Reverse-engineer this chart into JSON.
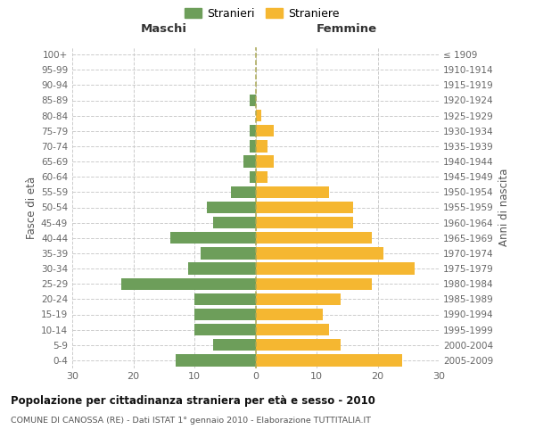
{
  "age_groups": [
    "0-4",
    "5-9",
    "10-14",
    "15-19",
    "20-24",
    "25-29",
    "30-34",
    "35-39",
    "40-44",
    "45-49",
    "50-54",
    "55-59",
    "60-64",
    "65-69",
    "70-74",
    "75-79",
    "80-84",
    "85-89",
    "90-94",
    "95-99",
    "100+"
  ],
  "birth_years": [
    "2005-2009",
    "2000-2004",
    "1995-1999",
    "1990-1994",
    "1985-1989",
    "1980-1984",
    "1975-1979",
    "1970-1974",
    "1965-1969",
    "1960-1964",
    "1955-1959",
    "1950-1954",
    "1945-1949",
    "1940-1944",
    "1935-1939",
    "1930-1934",
    "1925-1929",
    "1920-1924",
    "1915-1919",
    "1910-1914",
    "≤ 1909"
  ],
  "males": [
    13,
    7,
    10,
    10,
    10,
    22,
    11,
    9,
    14,
    7,
    8,
    4,
    1,
    2,
    1,
    1,
    0,
    1,
    0,
    0,
    0
  ],
  "females": [
    24,
    14,
    12,
    11,
    14,
    19,
    26,
    21,
    19,
    16,
    16,
    12,
    2,
    3,
    2,
    3,
    1,
    0,
    0,
    0,
    0
  ],
  "male_color": "#6d9e5a",
  "female_color": "#f5b731",
  "title": "Popolazione per cittadinanza straniera per età e sesso - 2010",
  "subtitle": "COMUNE DI CANOSSA (RE) - Dati ISTAT 1° gennaio 2010 - Elaborazione TUTTITALIA.IT",
  "label_maschi": "Maschi",
  "label_femmine": "Femmine",
  "ylabel_left": "Fasce di età",
  "ylabel_right": "Anni di nascita",
  "legend_male": "Stranieri",
  "legend_female": "Straniere",
  "xlim": 30,
  "background_color": "#ffffff",
  "grid_color": "#cccccc"
}
